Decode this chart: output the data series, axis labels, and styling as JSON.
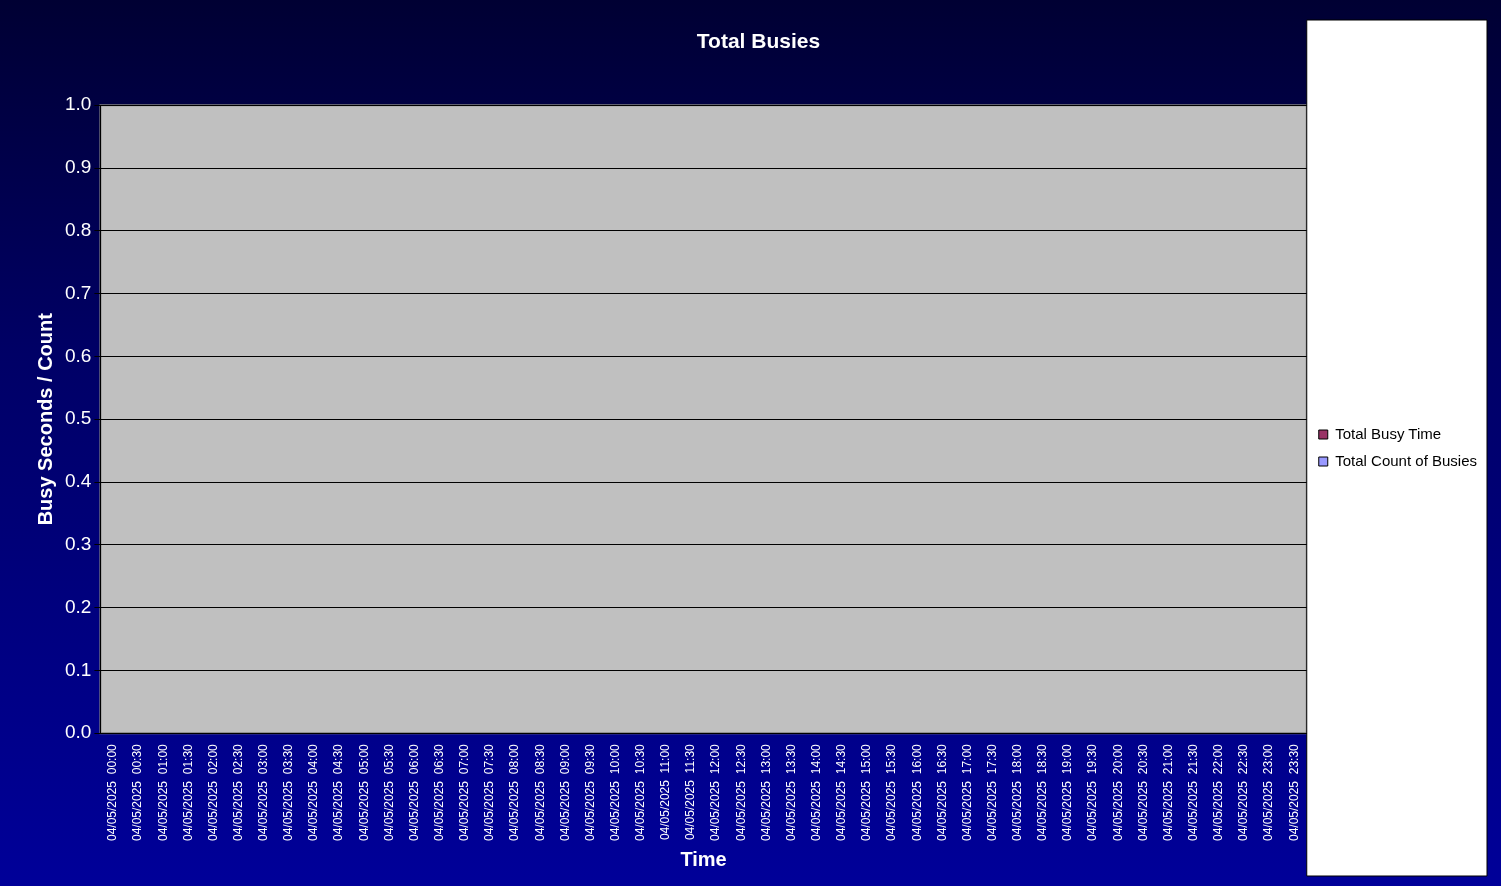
{
  "chart_data": {
    "type": "bar",
    "title": "Total Busies",
    "xlabel": "Time",
    "ylabel": "Busy Seconds / Count",
    "categories": [
      "04/05/2025  00:00",
      "04/05/2025  00:30",
      "04/05/2025  01:00",
      "04/05/2025  01:30",
      "04/05/2025  02:00",
      "04/05/2025  02:30",
      "04/05/2025  03:00",
      "04/05/2025  03:30",
      "04/05/2025  04:00",
      "04/05/2025  04:30",
      "04/05/2025  05:00",
      "04/05/2025  05:30",
      "04/05/2025  06:00",
      "04/05/2025  06:30",
      "04/05/2025  07:00",
      "04/05/2025  07:30",
      "04/05/2025  08:00",
      "04/05/2025  08:30",
      "04/05/2025  09:00",
      "04/05/2025  09:30",
      "04/05/2025  10:00",
      "04/05/2025  10:30",
      "04/05/2025  11:00",
      "04/05/2025  11:30",
      "04/05/2025  12:00",
      "04/05/2025  12:30",
      "04/05/2025  13:00",
      "04/05/2025  13:30",
      "04/05/2025  14:00",
      "04/05/2025  14:30",
      "04/05/2025  15:00",
      "04/05/2025  15:30",
      "04/05/2025  16:00",
      "04/05/2025  16:30",
      "04/05/2025  17:00",
      "04/05/2025  17:30",
      "04/05/2025  18:00",
      "04/05/2025  18:30",
      "04/05/2025  19:00",
      "04/05/2025  19:30",
      "04/05/2025  20:00",
      "04/05/2025  20:30",
      "04/05/2025  21:00",
      "04/05/2025  21:30",
      "04/05/2025  22:00",
      "04/05/2025  22:30",
      "04/05/2025  23:00",
      "04/05/2025  23:30"
    ],
    "series": [
      {
        "name": "Total Busy Time",
        "color": "#993366",
        "values": [
          0,
          0,
          0,
          0,
          0,
          0,
          0,
          0,
          0,
          0,
          0,
          0,
          0,
          0,
          0,
          0,
          0,
          0,
          0,
          0,
          0,
          0,
          0,
          0,
          0,
          0,
          0,
          0,
          0,
          0,
          0,
          0,
          0,
          0,
          0,
          0,
          0,
          0,
          0,
          0,
          0,
          0,
          0,
          0,
          0,
          0,
          0,
          0
        ]
      },
      {
        "name": "Total Count of Busies",
        "color": "#9999ff",
        "values": [
          0,
          0,
          0,
          0,
          0,
          0,
          0,
          0,
          0,
          0,
          0,
          0,
          0,
          0,
          0,
          0,
          0,
          0,
          0,
          0,
          0,
          0,
          0,
          0,
          0,
          0,
          0,
          0,
          0,
          0,
          0,
          0,
          0,
          0,
          0,
          0,
          0,
          0,
          0,
          0,
          0,
          0,
          0,
          0,
          0,
          0,
          0,
          0
        ]
      }
    ],
    "ylim": [
      0,
      1
    ],
    "yticks": [
      {
        "value": 0,
        "label": "0.0"
      },
      {
        "value": 0.1,
        "label": "0.1"
      },
      {
        "value": 0.2,
        "label": "0.2"
      },
      {
        "value": 0.3,
        "label": "0.3"
      },
      {
        "value": 0.4,
        "label": "0.4"
      },
      {
        "value": 0.5,
        "label": "0.5"
      },
      {
        "value": 0.6,
        "label": "0.6"
      },
      {
        "value": 0.7,
        "label": "0.7"
      },
      {
        "value": 0.8,
        "label": "0.8"
      },
      {
        "value": 0.9,
        "label": "0.9"
      },
      {
        "value": 1,
        "label": "1.0"
      }
    ],
    "grid": "y",
    "legend": "right"
  }
}
